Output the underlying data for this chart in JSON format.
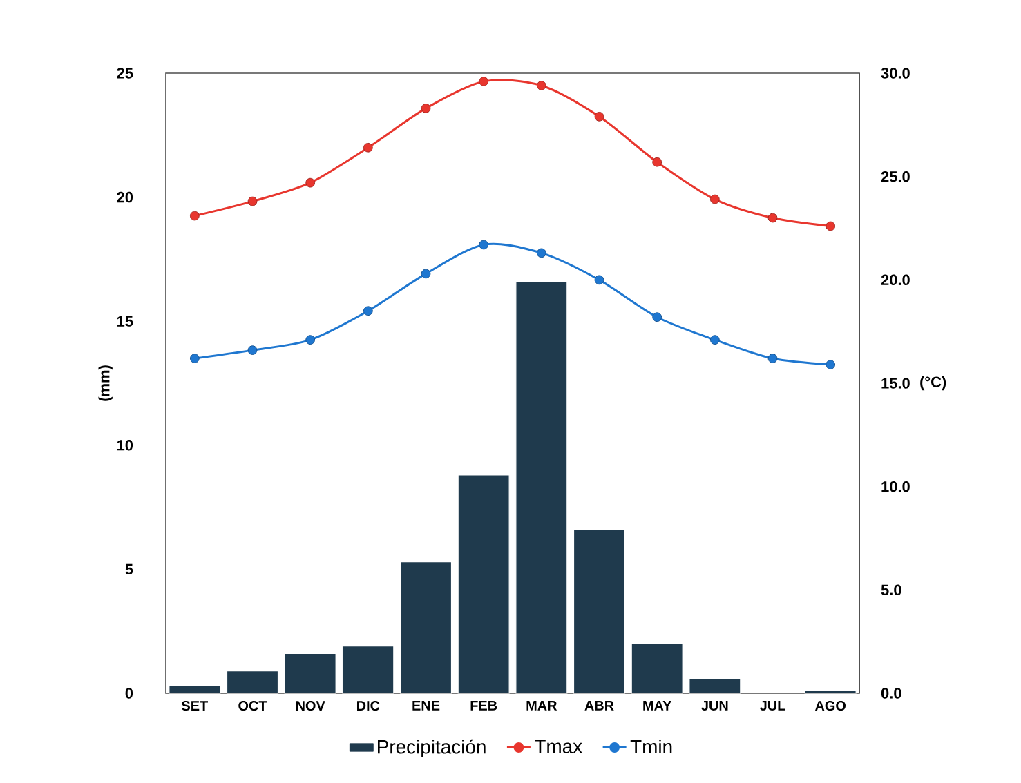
{
  "chart_data": {
    "type": "bar",
    "ylabel": "(mm)",
    "y2label": "(°C)",
    "categories": [
      "SET",
      "OCT",
      "NOV",
      "DIC",
      "ENE",
      "FEB",
      "MAR",
      "ABR",
      "MAY",
      "JUN",
      "JUL",
      "AGO"
    ],
    "series": [
      {
        "name": "Precipitación",
        "color": "#1f3a4d",
        "values": [
          0.3,
          0.9,
          1.6,
          1.9,
          5.3,
          8.8,
          16.6,
          6.6,
          2.0,
          0.6,
          null,
          0.1
        ]
      },
      {
        "name": "Tmax",
        "type": "line",
        "axis": "y2",
        "color": "#e8362e",
        "values": [
          23.1,
          23.8,
          24.7,
          26.4,
          28.3,
          29.6,
          29.4,
          27.9,
          25.7,
          23.9,
          23.0,
          22.6
        ]
      },
      {
        "name": "Tmin",
        "type": "line",
        "axis": "y2",
        "color": "#1f77d0",
        "values": [
          16.2,
          16.6,
          17.1,
          18.5,
          20.3,
          21.7,
          21.3,
          20.0,
          18.2,
          17.1,
          16.2,
          15.9
        ]
      }
    ],
    "ylim": [
      0,
      25
    ],
    "yticks": [
      0,
      5,
      10,
      15,
      20,
      25
    ],
    "y2lim": [
      0,
      30
    ],
    "y2ticks": [
      {
        "value": 0,
        "label": "0.0"
      },
      {
        "value": 5,
        "label": "5.0"
      },
      {
        "value": 10,
        "label": "10.0"
      },
      {
        "value": 15,
        "label": "15.0"
      },
      {
        "value": 20,
        "label": "20.0"
      },
      {
        "value": 25,
        "label": "25.0"
      },
      {
        "value": 30,
        "label": "30.0"
      }
    ],
    "marker": "circle",
    "legend": "bottom",
    "grid": false
  }
}
